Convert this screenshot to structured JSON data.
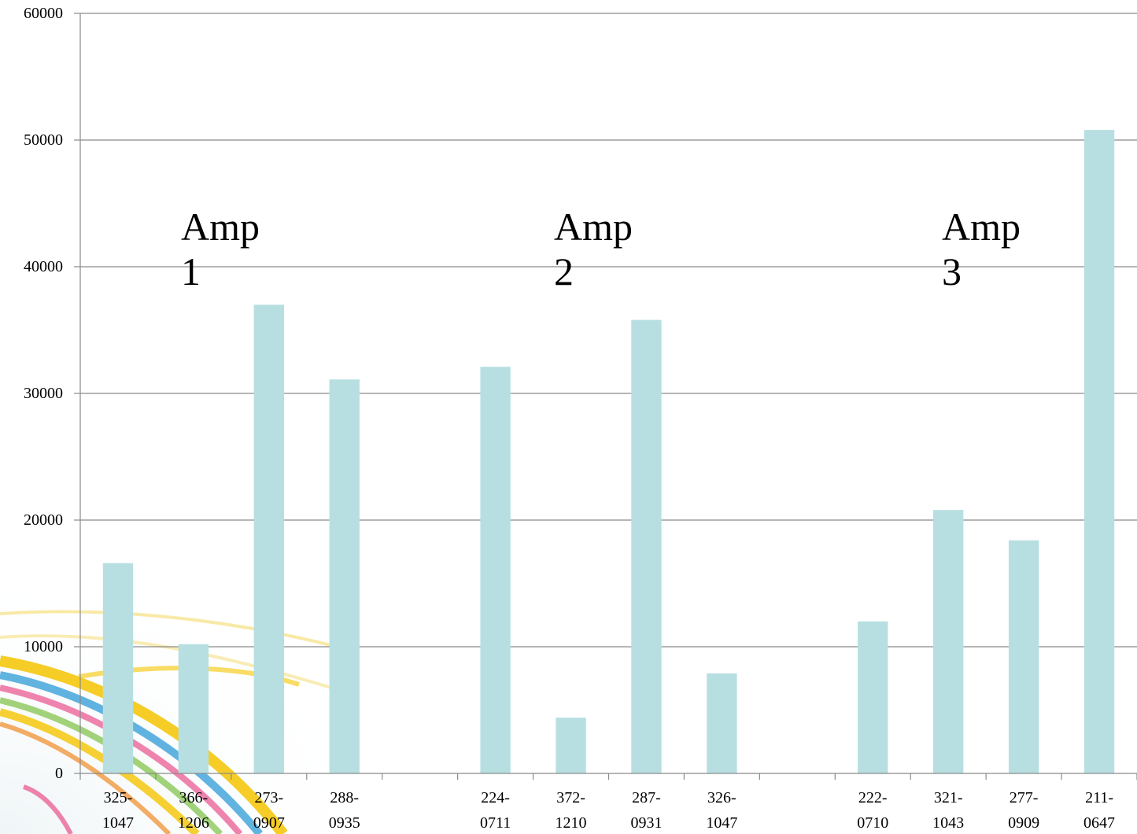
{
  "chart_data": {
    "type": "bar",
    "title": "",
    "xlabel": "",
    "ylabel": "",
    "ylim": [
      0,
      60000
    ],
    "y_ticks": [
      "0",
      "10000",
      "20000",
      "30000",
      "40000",
      "50000",
      "60000"
    ],
    "grid": true,
    "legend": "none",
    "bar_color": "#b7dfe1",
    "categories": [
      {
        "line1": "325-",
        "line2": "1047"
      },
      {
        "line1": "366-",
        "line2": "1206"
      },
      {
        "line1": "273-",
        "line2": "0907"
      },
      {
        "line1": "288-",
        "line2": "0935"
      },
      {
        "line1": "",
        "line2": ""
      },
      {
        "line1": "224-",
        "line2": "0711"
      },
      {
        "line1": "372-",
        "line2": "1210"
      },
      {
        "line1": "287-",
        "line2": "0931"
      },
      {
        "line1": "326-",
        "line2": "1047"
      },
      {
        "line1": "",
        "line2": ""
      },
      {
        "line1": "222-",
        "line2": "0710"
      },
      {
        "line1": "321-",
        "line2": "1043"
      },
      {
        "line1": "277-",
        "line2": "0909"
      },
      {
        "line1": "211-",
        "line2": "0647"
      }
    ],
    "values": [
      16600,
      10200,
      37000,
      31100,
      null,
      32100,
      4400,
      35800,
      7900,
      null,
      12000,
      20800,
      18400,
      50800
    ],
    "annotations": [
      {
        "line1": "Amp",
        "line2": "1"
      },
      {
        "line1": "Amp",
        "line2": "2"
      },
      {
        "line1": "Amp",
        "line2": "3"
      }
    ]
  }
}
